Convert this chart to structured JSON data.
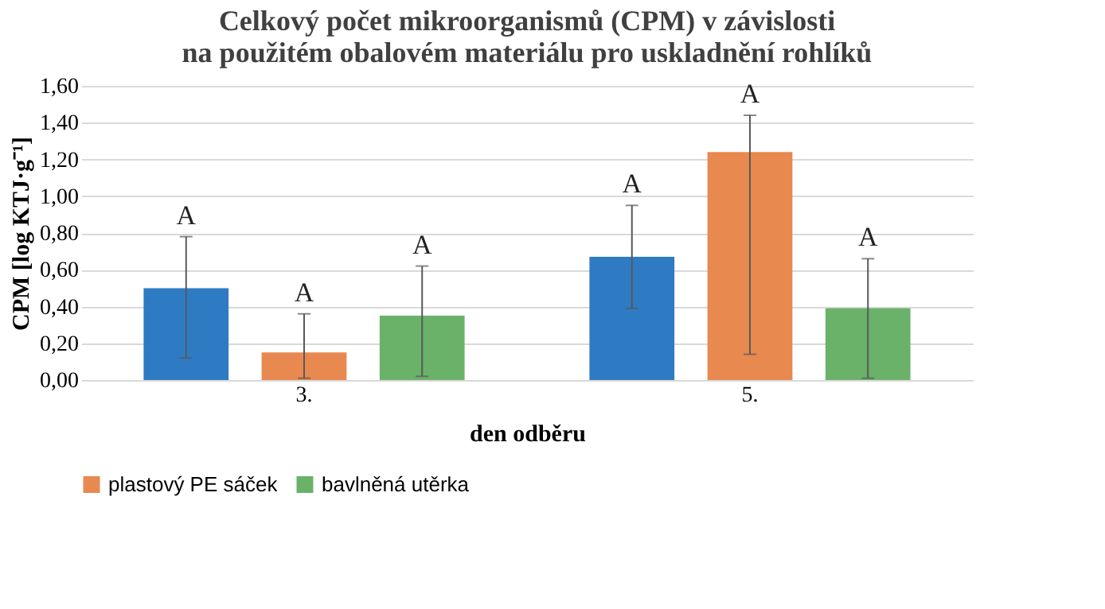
{
  "chart_data": {
    "type": "bar",
    "title": "Celkový počet mikroorganismů (CPM) v závislosti\nna použitém obalovém materiálu pro uskladnění rohlíků",
    "xlabel": "den odběru",
    "ylabel": "CPM [log KTJ·g⁻¹]",
    "categories": [
      "3.",
      "5."
    ],
    "series": [
      {
        "color": "#2e7bc4",
        "values": [
          0.5,
          0.67
        ],
        "errors": [
          [
            0.12,
            0.78
          ],
          [
            0.39,
            0.95
          ]
        ]
      },
      {
        "name": "plastový PE sáček",
        "color": "#e8894f",
        "values": [
          0.15,
          1.24
        ],
        "errors": [
          [
            0.01,
            0.36
          ],
          [
            0.14,
            1.44
          ]
        ]
      },
      {
        "name": "bavlněná utěrka",
        "color": "#6ab26a",
        "values": [
          0.35,
          0.39
        ],
        "errors": [
          [
            0.02,
            0.62
          ],
          [
            0.01,
            0.66
          ]
        ]
      }
    ],
    "annotations": [
      "A",
      "A",
      "A",
      "A",
      "A",
      "A"
    ],
    "ylim": [
      0,
      1.6
    ],
    "yticks": [
      {
        "value": 0,
        "label": "0,00"
      },
      {
        "value": 0.2,
        "label": "0,20"
      },
      {
        "value": 0.4,
        "label": "0,40"
      },
      {
        "value": 0.6,
        "label": "0,60"
      },
      {
        "value": 0.8,
        "label": "0,80"
      },
      {
        "value": 1.0,
        "label": "1,00"
      },
      {
        "value": 1.2,
        "label": "1,20"
      },
      {
        "value": 1.4,
        "label": "1,40"
      },
      {
        "value": 1.6,
        "label": "1,60"
      }
    ],
    "grid": "y",
    "legend": "bottom"
  }
}
